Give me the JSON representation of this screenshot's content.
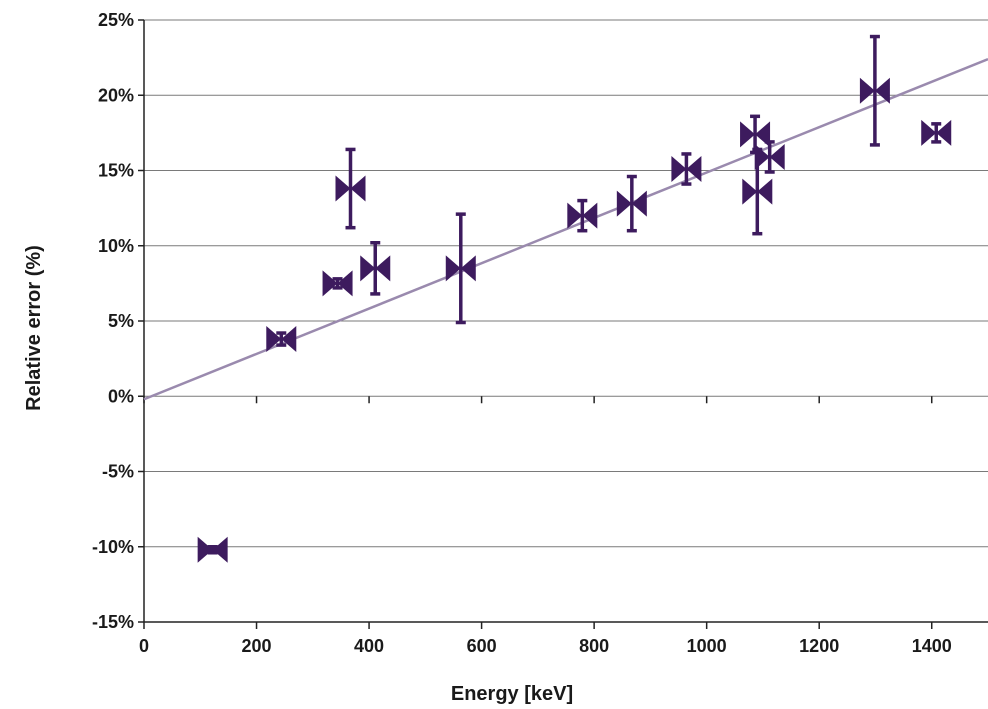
{
  "chart_data": {
    "type": "scatter",
    "title": "",
    "xlabel": "Energy [keV]",
    "ylabel": "Relative error (%)",
    "xlim": [
      0,
      1500
    ],
    "ylim": [
      -15,
      25
    ],
    "x_ticks": [
      0,
      200,
      400,
      600,
      800,
      1000,
      1200,
      1400
    ],
    "x_tick_labels": [
      "0",
      "200",
      "400",
      "600",
      "800",
      "1000",
      "1200",
      "1400"
    ],
    "y_ticks": [
      -15,
      -10,
      -5,
      0,
      5,
      10,
      15,
      20,
      25
    ],
    "y_tick_labels": [
      "-15%",
      "-10%",
      "-5%",
      "0%",
      "5%",
      "10%",
      "15%",
      "20%",
      "25%"
    ],
    "grid": "horizontal",
    "colors": {
      "points": "#3d1b5e",
      "trendline": "#9a8aae",
      "grid": "#7a7a7a",
      "axis": "#222222"
    },
    "points": [
      {
        "x": 122,
        "y": -10.2,
        "err_y": 0.2
      },
      {
        "x": 244,
        "y": 3.8,
        "err_y": 0.4
      },
      {
        "x": 344,
        "y": 7.5,
        "err_y": 0.3
      },
      {
        "x": 367,
        "y": 13.8,
        "err_y": 2.6
      },
      {
        "x": 411,
        "y": 8.5,
        "err_y": 1.7
      },
      {
        "x": 563,
        "y": 8.5,
        "err_y": 3.6
      },
      {
        "x": 779,
        "y": 12.0,
        "err_y": 1.0
      },
      {
        "x": 867,
        "y": 12.8,
        "err_y": 1.8
      },
      {
        "x": 964,
        "y": 15.1,
        "err_y": 1.0
      },
      {
        "x": 1086,
        "y": 17.4,
        "err_y": 1.2
      },
      {
        "x": 1090,
        "y": 13.6,
        "err_y": 2.8
      },
      {
        "x": 1112,
        "y": 15.9,
        "err_y": 1.0
      },
      {
        "x": 1299,
        "y": 20.3,
        "err_y": 3.6
      },
      {
        "x": 1408,
        "y": 17.5,
        "err_y": 0.6
      }
    ],
    "trendline": {
      "x": [
        0,
        1500
      ],
      "y": [
        -0.2,
        22.4
      ]
    }
  }
}
